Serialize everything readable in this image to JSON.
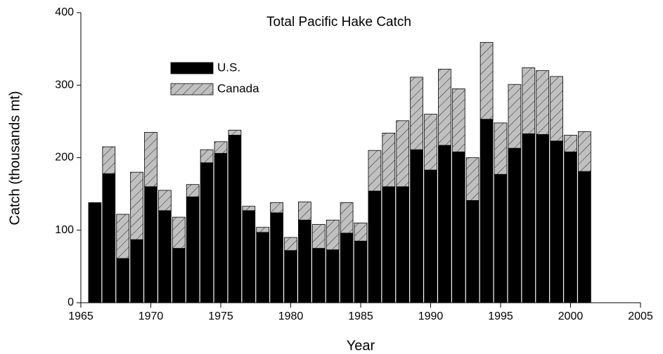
{
  "chart_data": {
    "type": "stacked_bar",
    "title": "Total Pacific Hake Catch",
    "xlabel": "Year",
    "ylabel": "Catch (thousands mt)",
    "x": [
      1966,
      1967,
      1968,
      1969,
      1970,
      1971,
      1972,
      1973,
      1974,
      1975,
      1976,
      1977,
      1978,
      1979,
      1980,
      1981,
      1982,
      1983,
      1984,
      1985,
      1986,
      1987,
      1988,
      1989,
      1990,
      1991,
      1992,
      1993,
      1994,
      1995,
      1996,
      1997,
      1998,
      1999,
      2000,
      2001
    ],
    "series": [
      {
        "name": "U.S.",
        "color": "#000000",
        "pattern": "solid",
        "values": [
          138,
          178,
          61,
          87,
          160,
          127,
          75,
          146,
          193,
          206,
          231,
          127,
          97,
          124,
          72,
          114,
          75,
          73,
          96,
          85,
          154,
          160,
          160,
          211,
          183,
          217,
          208,
          141,
          253,
          177,
          213,
          233,
          232,
          223,
          208,
          181
        ]
      },
      {
        "name": "Canada",
        "color": "#c0c0c0",
        "pattern": "hatch",
        "values": [
          0,
          37,
          61,
          93,
          75,
          28,
          43,
          17,
          18,
          16,
          7,
          6,
          7,
          14,
          18,
          25,
          33,
          41,
          42,
          25,
          56,
          74,
          91,
          100,
          77,
          105,
          87,
          59,
          106,
          71,
          88,
          91,
          88,
          89,
          23,
          55
        ]
      }
    ],
    "xlim": [
      1965,
      2005
    ],
    "xticks": [
      1965,
      1970,
      1975,
      1980,
      1985,
      1990,
      1995,
      2000,
      2005
    ],
    "ylim": [
      0,
      400
    ],
    "yticks": [
      0,
      100,
      200,
      300,
      400
    ],
    "grid": false,
    "legend": "upper left"
  }
}
